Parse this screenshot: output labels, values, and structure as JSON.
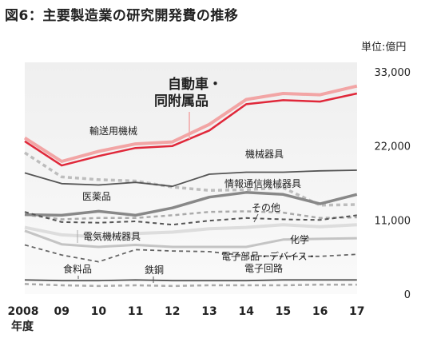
{
  "title": "図6：主要製造業の研究開発費の推移",
  "chart_data": {
    "type": "line",
    "unit_label": "単位:億円",
    "x_axis_suffix": "年度",
    "categories": [
      "2008",
      "09",
      "10",
      "11",
      "12",
      "13",
      "14",
      "15",
      "16",
      "17"
    ],
    "y_ticks": [
      "33,000",
      "22,000",
      "11,000",
      "0"
    ],
    "ylim": [
      0,
      33000
    ],
    "grid": false,
    "series": [
      {
        "name": "自動車・同附属品",
        "values": [
          22700,
          19100,
          20500,
          21700,
          22000,
          24300,
          28200,
          28800,
          28600,
          29800
        ],
        "style": "solid",
        "color": "#e0283a",
        "width": 2.5
      },
      {
        "name": "自動車・同附属品(輸送用機械)",
        "values": [
          23200,
          19700,
          21200,
          22300,
          22600,
          25200,
          28900,
          29800,
          29600,
          30900
        ],
        "style": "solid",
        "color": "#f2a5a5",
        "width": 4
      },
      {
        "name": "輸送用機械",
        "values": [
          21000,
          17400,
          17000,
          16800,
          15900,
          15400,
          15500,
          15800,
          13200,
          13300
        ],
        "style": "dashed",
        "color": "#bdbdbd",
        "width": 3.5
      },
      {
        "name": "機械器具",
        "values": [
          18000,
          16400,
          16200,
          16600,
          16000,
          17800,
          18100,
          18100,
          18300,
          18400
        ],
        "style": "solid",
        "color": "#555555",
        "width": 1.8
      },
      {
        "name": "情報通信機械器具",
        "values": [
          11800,
          11100,
          11300,
          11300,
          11700,
          12200,
          12300,
          12100,
          11300,
          11400
        ],
        "style": "dashed",
        "color": "#aaaaaa",
        "width": 2.5
      },
      {
        "name": "医薬品",
        "values": [
          11800,
          11700,
          12300,
          11700,
          12800,
          14400,
          15100,
          14800,
          13400,
          14800
        ],
        "style": "solid",
        "color": "#888888",
        "width": 3.5
      },
      {
        "name": "その他",
        "values": [
          12200,
          10700,
          10600,
          10800,
          10300,
          10900,
          11300,
          11100,
          11000,
          11700
        ],
        "style": "dashed",
        "color": "#555555",
        "width": 2
      },
      {
        "name": "化学",
        "values": [
          9900,
          8800,
          8500,
          9000,
          9200,
          9700,
          9900,
          10300,
          10000,
          10300
        ],
        "style": "solid",
        "color": "#dddddd",
        "width": 4
      },
      {
        "name": "電気機械器具",
        "values": [
          9400,
          7400,
          7000,
          7300,
          7000,
          7000,
          7000,
          8100,
          8200,
          8300
        ],
        "style": "solid",
        "color": "#c4c4c4",
        "width": 3
      },
      {
        "name": "電子部品・デバイス・電子回路",
        "values": [
          7300,
          5800,
          4800,
          6600,
          6400,
          6300,
          5700,
          5600,
          5600,
          5900
        ],
        "style": "dashed",
        "color": "#666666",
        "width": 1.8
      },
      {
        "name": "食料品",
        "values": [
          2100,
          2000,
          2000,
          2100,
          2000,
          2000,
          2000,
          2100,
          2100,
          2100
        ],
        "style": "solid",
        "color": "#555555",
        "width": 1.8
      },
      {
        "name": "鉄鋼",
        "values": [
          1500,
          1300,
          1200,
          1300,
          1200,
          1300,
          1300,
          1300,
          1400,
          1400
        ],
        "style": "dashed",
        "color": "#aaaaaa",
        "width": 2.5
      }
    ],
    "labels": {
      "car_line1": "自動車・",
      "car_line2": "同附属品",
      "transport": "輸送用機械",
      "machinery": "機械器具",
      "ict": "情報通信機械器具",
      "pharma": "医薬品",
      "other": "その他",
      "electric": "電気機械器具",
      "chemical": "化学",
      "electronic_line1": "電子部品・デバイス・",
      "electronic_line2": "電子回路",
      "food": "食料品",
      "steel": "鉄鋼"
    }
  }
}
